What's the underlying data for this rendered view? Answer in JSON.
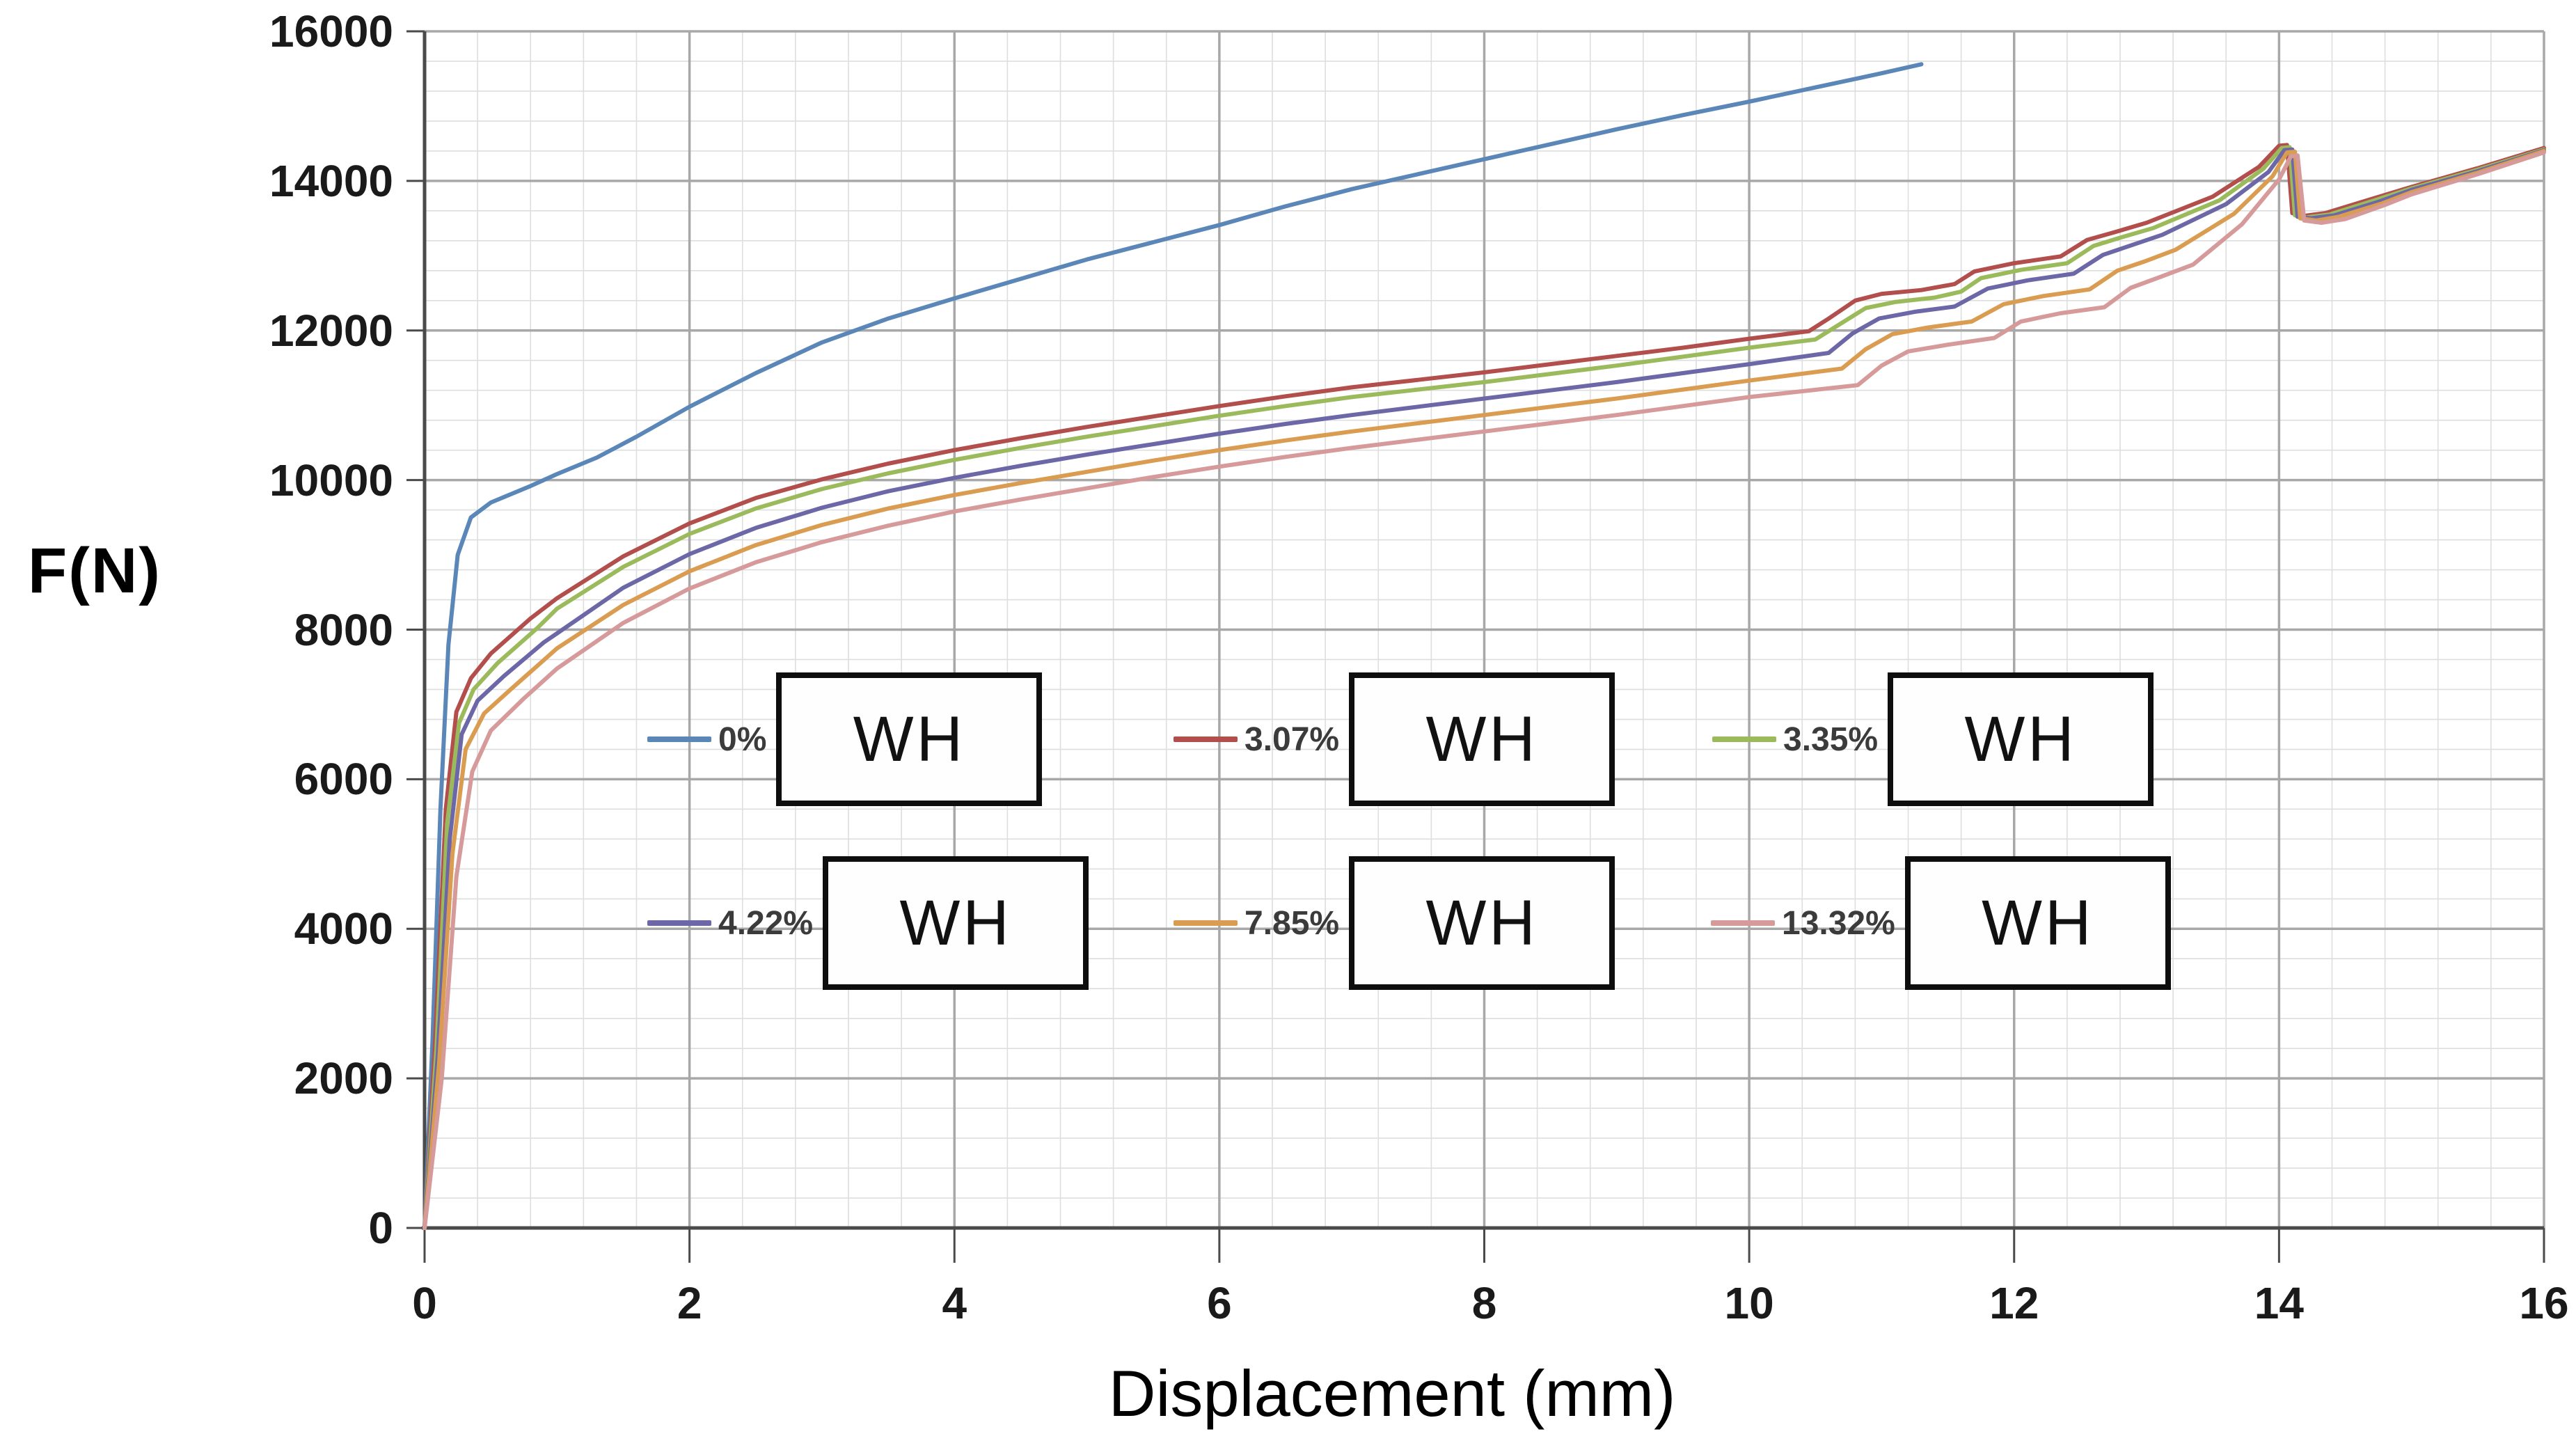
{
  "axes": {
    "x_title": "Displacement (mm)",
    "y_title": "F(N)"
  },
  "chart_data": {
    "type": "line",
    "title": "",
    "xlabel": "Displacement (mm)",
    "ylabel": "F(N)",
    "xlim": [
      0,
      16
    ],
    "ylim": [
      0,
      16000
    ],
    "x_ticks": [
      0,
      2,
      4,
      6,
      8,
      10,
      12,
      14,
      16
    ],
    "y_ticks": [
      0,
      2000,
      4000,
      6000,
      8000,
      10000,
      12000,
      14000,
      16000
    ],
    "x_minor_step": 0.4,
    "y_minor_step": 400,
    "grid": true,
    "grid_minor_color": "#dedede",
    "grid_major_color": "#a8a8a8",
    "axis_color": "#4a4a4a",
    "legend_position": "inside plot, two rows of three entries",
    "legend_annotation": "WH",
    "series": [
      {
        "name": "0%",
        "box_label": "WH",
        "color": "#5b86b8",
        "points": [
          [
            0,
            0
          ],
          [
            0.06,
            2500
          ],
          [
            0.12,
            5600
          ],
          [
            0.18,
            7800
          ],
          [
            0.25,
            9000
          ],
          [
            0.35,
            9500
          ],
          [
            0.5,
            9700
          ],
          [
            0.8,
            9920
          ],
          [
            1.0,
            10080
          ],
          [
            1.3,
            10300
          ],
          [
            1.6,
            10580
          ],
          [
            2.0,
            10980
          ],
          [
            2.5,
            11430
          ],
          [
            3.0,
            11840
          ],
          [
            3.5,
            12160
          ],
          [
            4.0,
            12430
          ],
          [
            4.5,
            12690
          ],
          [
            5.0,
            12950
          ],
          [
            5.5,
            13180
          ],
          [
            6.0,
            13410
          ],
          [
            6.5,
            13660
          ],
          [
            7.0,
            13890
          ],
          [
            7.5,
            14090
          ],
          [
            8.0,
            14290
          ],
          [
            8.5,
            14490
          ],
          [
            9.0,
            14690
          ],
          [
            9.5,
            14880
          ],
          [
            10.0,
            15060
          ],
          [
            10.5,
            15250
          ],
          [
            11.0,
            15440
          ],
          [
            11.3,
            15560
          ]
        ]
      },
      {
        "name": "3.07%",
        "box_label": "WH",
        "color": "#b24f4c",
        "points": [
          [
            0,
            0
          ],
          [
            0.08,
            2500
          ],
          [
            0.16,
            5600
          ],
          [
            0.24,
            6900
          ],
          [
            0.35,
            7350
          ],
          [
            0.5,
            7680
          ],
          [
            0.8,
            8150
          ],
          [
            1.0,
            8420
          ],
          [
            1.5,
            8980
          ],
          [
            2.0,
            9420
          ],
          [
            2.5,
            9760
          ],
          [
            3.0,
            10010
          ],
          [
            3.5,
            10220
          ],
          [
            4.0,
            10400
          ],
          [
            4.5,
            10560
          ],
          [
            5.0,
            10710
          ],
          [
            5.5,
            10850
          ],
          [
            6.0,
            10990
          ],
          [
            6.5,
            11120
          ],
          [
            7.0,
            11240
          ],
          [
            7.5,
            11340
          ],
          [
            8.0,
            11440
          ],
          [
            8.5,
            11550
          ],
          [
            9.0,
            11660
          ],
          [
            9.5,
            11770
          ],
          [
            10.0,
            11890
          ],
          [
            10.45,
            11990
          ],
          [
            10.6,
            12160
          ],
          [
            10.8,
            12400
          ],
          [
            11.0,
            12490
          ],
          [
            11.3,
            12540
          ],
          [
            11.55,
            12620
          ],
          [
            11.7,
            12790
          ],
          [
            12.0,
            12900
          ],
          [
            12.35,
            12990
          ],
          [
            12.55,
            13210
          ],
          [
            12.75,
            13310
          ],
          [
            13.0,
            13440
          ],
          [
            13.5,
            13790
          ],
          [
            13.85,
            14190
          ],
          [
            14.0,
            14470
          ],
          [
            14.06,
            14480
          ],
          [
            14.1,
            13570
          ],
          [
            14.18,
            13530
          ],
          [
            14.35,
            13570
          ],
          [
            14.7,
            13760
          ],
          [
            15.0,
            13920
          ],
          [
            15.5,
            14170
          ],
          [
            16.0,
            14440
          ]
        ]
      },
      {
        "name": "3.35%",
        "box_label": "WH",
        "color": "#9bba5c",
        "points": [
          [
            0,
            0
          ],
          [
            0.09,
            2400
          ],
          [
            0.17,
            5400
          ],
          [
            0.26,
            6750
          ],
          [
            0.37,
            7200
          ],
          [
            0.55,
            7550
          ],
          [
            0.85,
            8020
          ],
          [
            1.0,
            8280
          ],
          [
            1.5,
            8840
          ],
          [
            2.0,
            9280
          ],
          [
            2.5,
            9620
          ],
          [
            3.0,
            9880
          ],
          [
            3.5,
            10090
          ],
          [
            4.0,
            10270
          ],
          [
            4.5,
            10430
          ],
          [
            5.0,
            10580
          ],
          [
            5.5,
            10720
          ],
          [
            6.0,
            10860
          ],
          [
            6.5,
            10990
          ],
          [
            7.0,
            11110
          ],
          [
            7.5,
            11210
          ],
          [
            8.0,
            11310
          ],
          [
            8.5,
            11420
          ],
          [
            9.0,
            11530
          ],
          [
            9.5,
            11650
          ],
          [
            10.0,
            11770
          ],
          [
            10.5,
            11880
          ],
          [
            10.68,
            12080
          ],
          [
            10.88,
            12300
          ],
          [
            11.1,
            12380
          ],
          [
            11.4,
            12440
          ],
          [
            11.6,
            12520
          ],
          [
            11.75,
            12700
          ],
          [
            12.05,
            12810
          ],
          [
            12.4,
            12900
          ],
          [
            12.6,
            13130
          ],
          [
            12.8,
            13240
          ],
          [
            13.05,
            13370
          ],
          [
            13.55,
            13740
          ],
          [
            13.88,
            14160
          ],
          [
            14.02,
            14440
          ],
          [
            14.08,
            14450
          ],
          [
            14.12,
            13540
          ],
          [
            14.2,
            13510
          ],
          [
            14.38,
            13550
          ],
          [
            14.72,
            13740
          ],
          [
            15.0,
            13900
          ],
          [
            15.5,
            14150
          ],
          [
            16.0,
            14420
          ]
        ]
      },
      {
        "name": "4.22%",
        "box_label": "WH",
        "color": "#6c67a6",
        "points": [
          [
            0,
            0
          ],
          [
            0.1,
            2300
          ],
          [
            0.19,
            5200
          ],
          [
            0.28,
            6600
          ],
          [
            0.4,
            7050
          ],
          [
            0.6,
            7380
          ],
          [
            0.9,
            7830
          ],
          [
            1.0,
            7950
          ],
          [
            1.5,
            8560
          ],
          [
            2.0,
            9010
          ],
          [
            2.5,
            9360
          ],
          [
            3.0,
            9630
          ],
          [
            3.5,
            9850
          ],
          [
            4.0,
            10030
          ],
          [
            4.5,
            10190
          ],
          [
            5.0,
            10340
          ],
          [
            5.5,
            10480
          ],
          [
            6.0,
            10620
          ],
          [
            6.5,
            10750
          ],
          [
            7.0,
            10870
          ],
          [
            7.5,
            10980
          ],
          [
            8.0,
            11090
          ],
          [
            8.5,
            11200
          ],
          [
            9.0,
            11310
          ],
          [
            9.5,
            11430
          ],
          [
            10.0,
            11550
          ],
          [
            10.6,
            11700
          ],
          [
            10.78,
            11960
          ],
          [
            10.98,
            12160
          ],
          [
            11.25,
            12250
          ],
          [
            11.55,
            12320
          ],
          [
            11.8,
            12560
          ],
          [
            12.1,
            12670
          ],
          [
            12.45,
            12760
          ],
          [
            12.67,
            13010
          ],
          [
            12.87,
            13130
          ],
          [
            13.12,
            13280
          ],
          [
            13.6,
            13690
          ],
          [
            13.92,
            14120
          ],
          [
            14.04,
            14410
          ],
          [
            14.1,
            14420
          ],
          [
            14.14,
            13520
          ],
          [
            14.24,
            13500
          ],
          [
            14.42,
            13540
          ],
          [
            14.75,
            13720
          ],
          [
            15.0,
            13880
          ],
          [
            15.5,
            14130
          ],
          [
            16.0,
            14410
          ]
        ]
      },
      {
        "name": "7.85%",
        "box_label": "WH",
        "color": "#d99c50",
        "points": [
          [
            0,
            0
          ],
          [
            0.11,
            2200
          ],
          [
            0.21,
            5000
          ],
          [
            0.31,
            6400
          ],
          [
            0.45,
            6880
          ],
          [
            0.65,
            7200
          ],
          [
            1.0,
            7750
          ],
          [
            1.5,
            8330
          ],
          [
            2.0,
            8780
          ],
          [
            2.5,
            9130
          ],
          [
            3.0,
            9400
          ],
          [
            3.5,
            9620
          ],
          [
            4.0,
            9800
          ],
          [
            4.5,
            9960
          ],
          [
            5.0,
            10110
          ],
          [
            5.5,
            10260
          ],
          [
            6.0,
            10400
          ],
          [
            6.5,
            10530
          ],
          [
            7.0,
            10650
          ],
          [
            7.5,
            10760
          ],
          [
            8.0,
            10870
          ],
          [
            8.5,
            10980
          ],
          [
            9.0,
            11090
          ],
          [
            9.5,
            11210
          ],
          [
            10.0,
            11330
          ],
          [
            10.7,
            11490
          ],
          [
            10.88,
            11750
          ],
          [
            11.08,
            11950
          ],
          [
            11.35,
            12040
          ],
          [
            11.68,
            12120
          ],
          [
            11.92,
            12350
          ],
          [
            12.22,
            12460
          ],
          [
            12.57,
            12550
          ],
          [
            12.78,
            12800
          ],
          [
            12.98,
            12920
          ],
          [
            13.22,
            13080
          ],
          [
            13.66,
            13560
          ],
          [
            13.95,
            14060
          ],
          [
            14.06,
            14380
          ],
          [
            14.12,
            14390
          ],
          [
            14.16,
            13500
          ],
          [
            14.28,
            13470
          ],
          [
            14.45,
            13520
          ],
          [
            14.78,
            13700
          ],
          [
            15.0,
            13850
          ],
          [
            15.5,
            14110
          ],
          [
            16.0,
            14400
          ]
        ]
      },
      {
        "name": "13.32%",
        "box_label": "WH",
        "color": "#d79a9b",
        "points": [
          [
            0,
            0
          ],
          [
            0.13,
            2000
          ],
          [
            0.24,
            4700
          ],
          [
            0.36,
            6100
          ],
          [
            0.5,
            6650
          ],
          [
            0.75,
            7080
          ],
          [
            1.0,
            7480
          ],
          [
            1.5,
            8090
          ],
          [
            2.0,
            8550
          ],
          [
            2.5,
            8900
          ],
          [
            3.0,
            9170
          ],
          [
            3.5,
            9390
          ],
          [
            4.0,
            9580
          ],
          [
            4.5,
            9740
          ],
          [
            5.0,
            9890
          ],
          [
            5.5,
            10040
          ],
          [
            6.0,
            10180
          ],
          [
            6.5,
            10310
          ],
          [
            7.0,
            10430
          ],
          [
            7.5,
            10540
          ],
          [
            8.0,
            10650
          ],
          [
            8.5,
            10760
          ],
          [
            9.0,
            10870
          ],
          [
            9.5,
            10990
          ],
          [
            10.0,
            11110
          ],
          [
            10.82,
            11270
          ],
          [
            11.0,
            11530
          ],
          [
            11.2,
            11720
          ],
          [
            11.5,
            11810
          ],
          [
            11.85,
            11900
          ],
          [
            12.05,
            12120
          ],
          [
            12.35,
            12230
          ],
          [
            12.68,
            12310
          ],
          [
            12.88,
            12570
          ],
          [
            13.08,
            12700
          ],
          [
            13.35,
            12880
          ],
          [
            13.72,
            13420
          ],
          [
            14.0,
            14020
          ],
          [
            14.09,
            14330
          ],
          [
            14.14,
            14340
          ],
          [
            14.19,
            13470
          ],
          [
            14.32,
            13440
          ],
          [
            14.5,
            13490
          ],
          [
            14.8,
            13680
          ],
          [
            15.0,
            13820
          ],
          [
            15.5,
            14090
          ],
          [
            16.0,
            14380
          ]
        ]
      }
    ]
  }
}
